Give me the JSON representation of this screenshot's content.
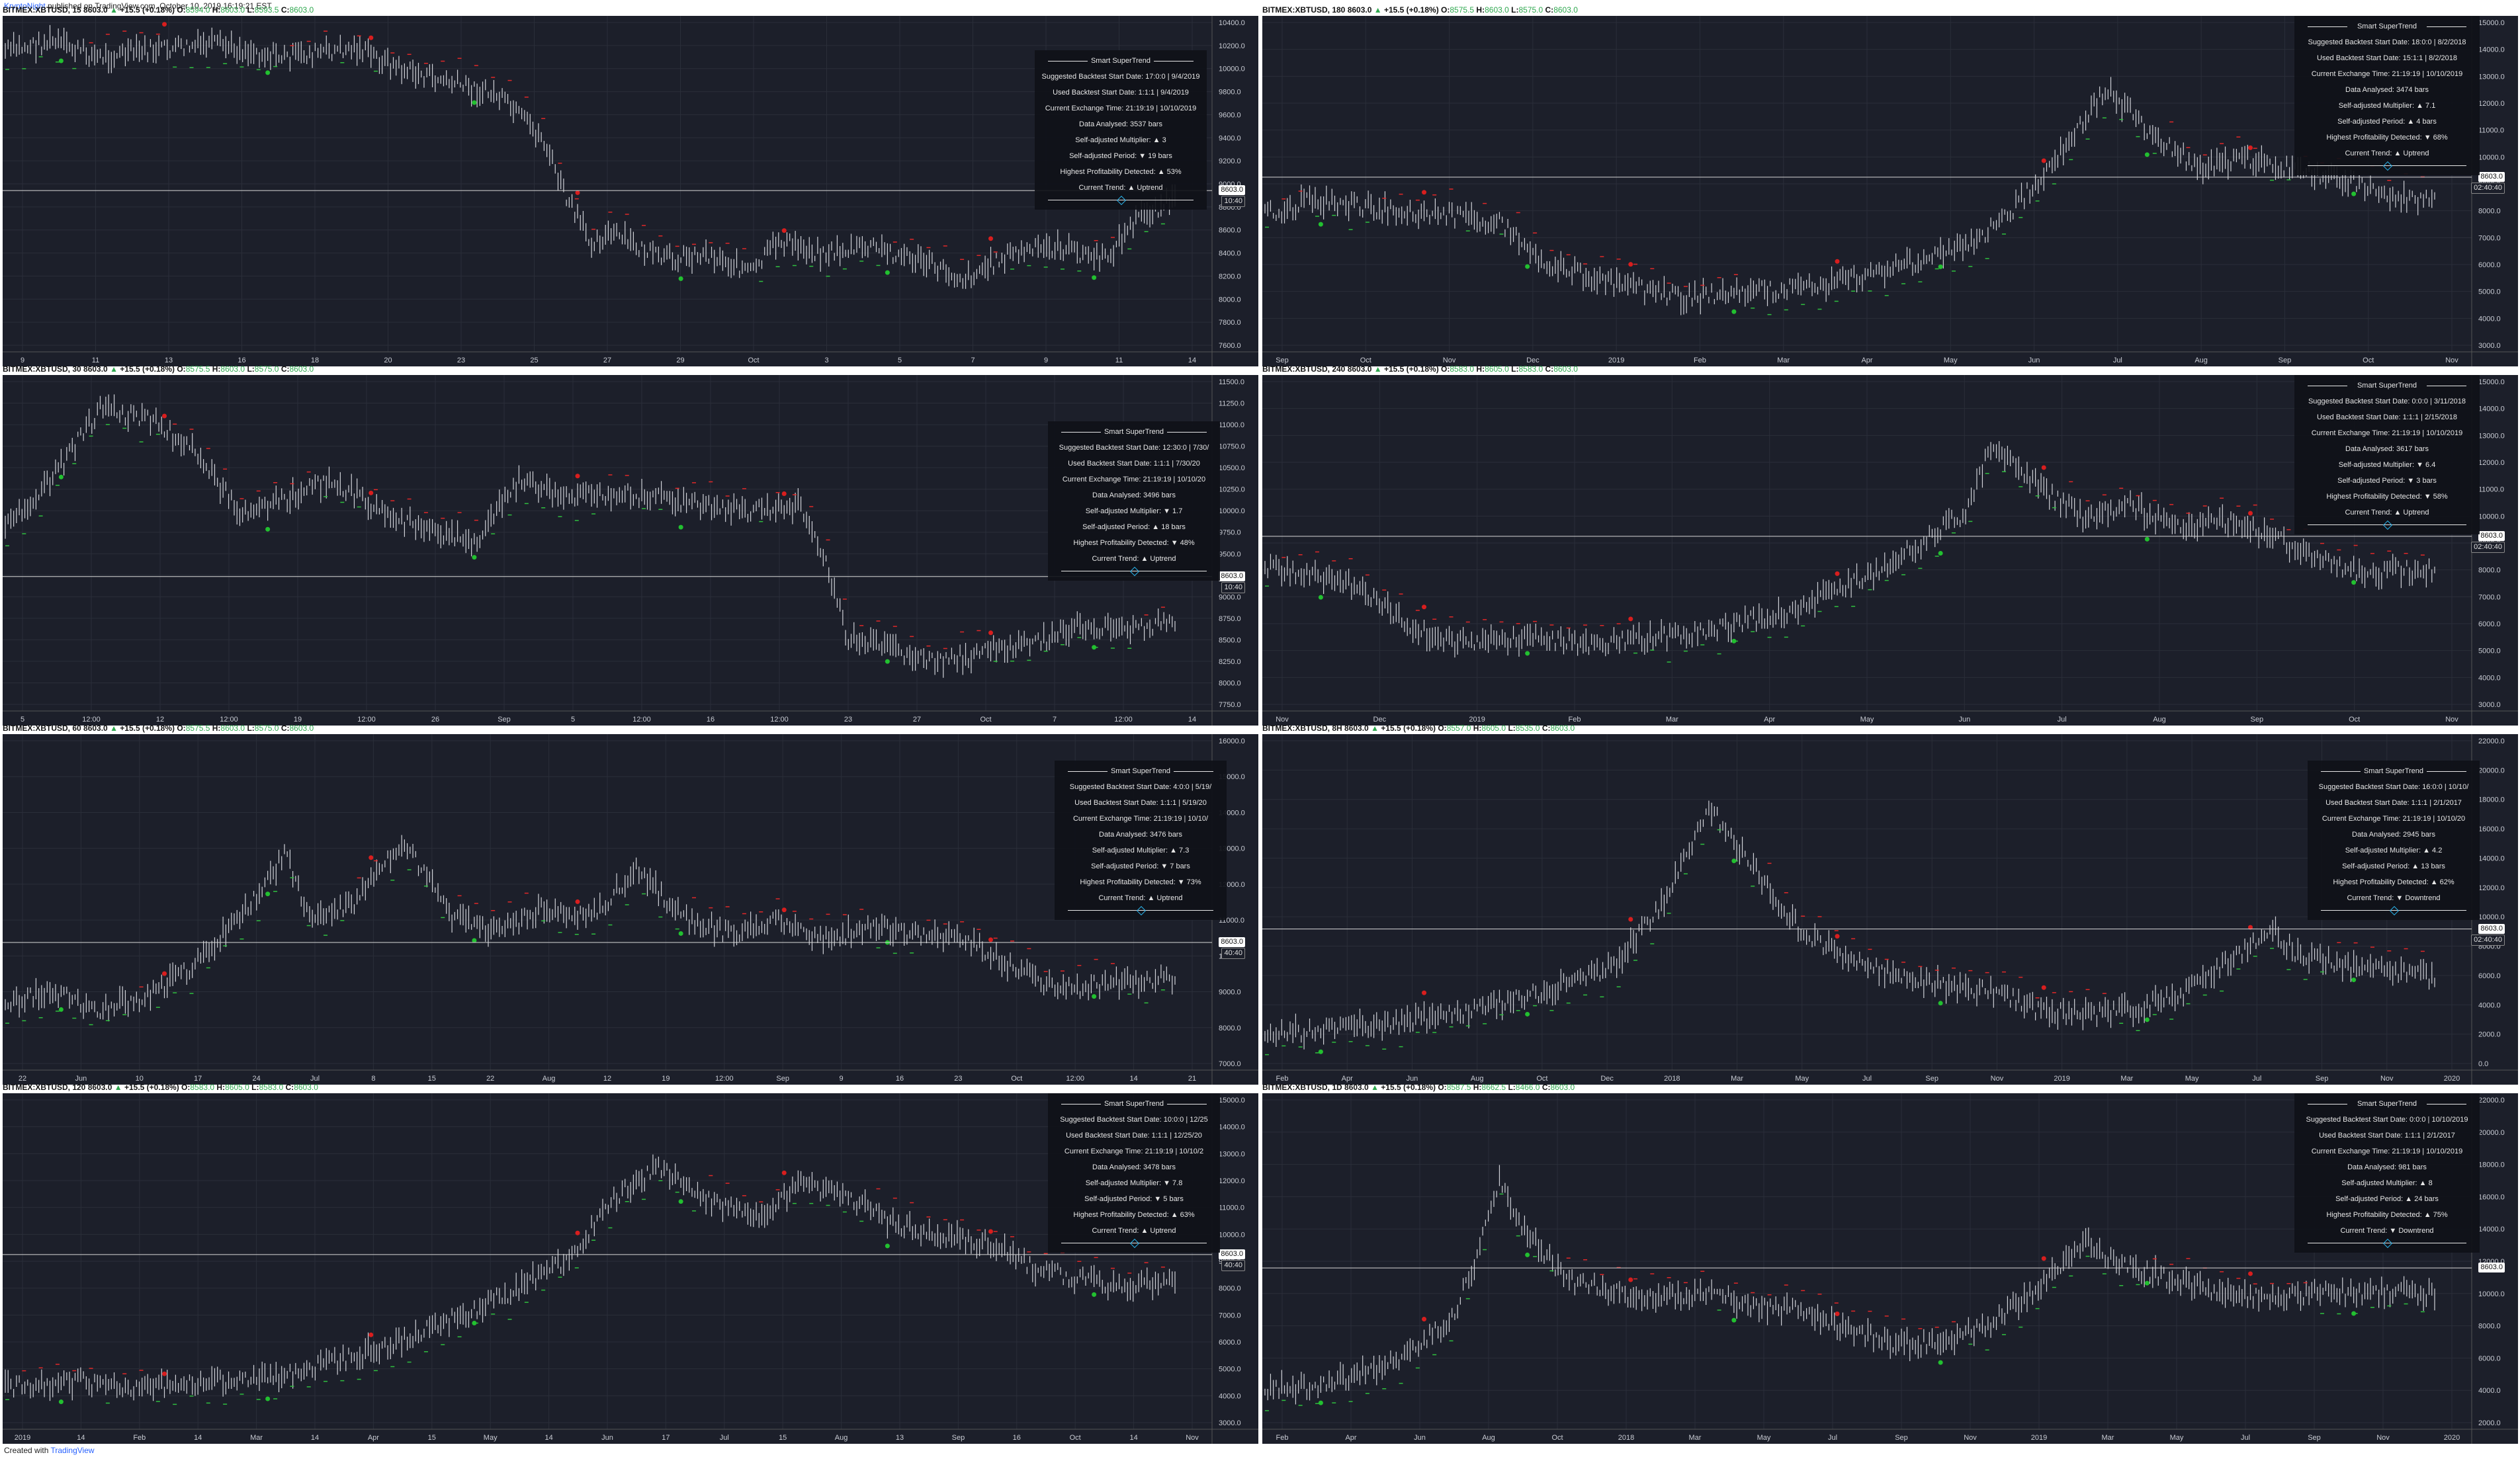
{
  "header": {
    "author": "KryptoNight",
    "published": "published on TradingView.com, October 10, 2019 16:19:21 EST"
  },
  "footer": {
    "created_with": "Created with",
    "brand": "TradingView"
  },
  "colors": {
    "panel_bg": "#1c1f2a",
    "candle": "#d0d2d8",
    "supertrend_up": "#2fbf3f",
    "supertrend_down": "#e02828",
    "buy": "#22c030",
    "sell": "#d81e1e",
    "grid": "#2a2e39"
  },
  "panels": [
    {
      "id": "p15",
      "title": {
        "symbol": "BITMEX:XBTUSD, 15",
        "last": "8603.0",
        "change": "+15.5 (+0.18%)",
        "o": "8594.0",
        "h": "8603.0",
        "l": "8593.5",
        "c": "8603.0"
      },
      "info": {
        "title": "Smart SuperTrend",
        "rows": [
          "Suggested Backtest Start Date: 17:0:0 | 9/4/2019",
          "Used Backtest Start Date: 1:1:1 | 9/4/2019",
          "Current Exchange Time: 21:19:19 | 10/10/2019",
          "Data Analysed: 3537 bars",
          "Self-adjusted Multiplier: ▲ 3",
          "Self-adjusted Period: ▼ 19 bars",
          "Highest Profitability Detected: ▲ 53%",
          "Current Trend: ▲ Uptrend"
        ]
      },
      "price_tag": "8603.0",
      "time_tag": "10:40",
      "yticks": [
        "10400.0",
        "10200.0",
        "10000.0",
        "9800.0",
        "9600.0",
        "9400.0",
        "9200.0",
        "9000.0",
        "8800.0",
        "8600.0",
        "8400.0",
        "8200.0",
        "8000.0",
        "7800.0",
        "7600.0"
      ],
      "xticks": [
        "9",
        "11",
        "13",
        "16",
        "18",
        "20",
        "23",
        "25",
        "27",
        "29",
        "Oct",
        "3",
        "5",
        "7",
        "9",
        "11",
        "14"
      ]
    },
    {
      "id": "p180",
      "title": {
        "symbol": "BITMEX:XBTUSD, 180",
        "last": "8603.0",
        "change": "+15.5 (+0.18%)",
        "o": "8575.5",
        "h": "8603.0",
        "l": "8575.0",
        "c": "8603.0"
      },
      "info": {
        "title": "Smart SuperTrend",
        "rows": [
          "Suggested Backtest Start Date: 18:0:0 | 8/2/2018",
          "Used Backtest Start Date: 15:1:1 | 8/2/2018",
          "Current Exchange Time: 21:19:19 | 10/10/2019",
          "Data Analysed: 3474 bars",
          "Self-adjusted Multiplier: ▲ 7.1",
          "Self-adjusted Period: ▲ 4 bars",
          "Highest Profitability Detected: ▼ 68%",
          "Current Trend: ▲ Uptrend"
        ]
      },
      "price_tag": "8603.0",
      "time_tag": "02:40:40",
      "yticks": [
        "15000.0",
        "14000.0",
        "13000.0",
        "12000.0",
        "11000.0",
        "10000.0",
        "9000.0",
        "8000.0",
        "7000.0",
        "6000.0",
        "5000.0",
        "4000.0",
        "3000.0"
      ],
      "xticks": [
        "Sep",
        "Oct",
        "Nov",
        "Dec",
        "2019",
        "Feb",
        "Mar",
        "Apr",
        "May",
        "Jun",
        "Jul",
        "Aug",
        "Sep",
        "Oct",
        "Nov"
      ]
    },
    {
      "id": "p30",
      "title": {
        "symbol": "BITMEX:XBTUSD, 30",
        "last": "8603.0",
        "change": "+15.5 (+0.18%)",
        "o": "8575.5",
        "h": "8603.0",
        "l": "8575.0",
        "c": "8603.0"
      },
      "info": {
        "title": "Smart SuperTrend",
        "rows": [
          "Suggested Backtest Start Date: 12:30:0 | 7/30/",
          "Used Backtest Start Date: 1:1:1 | 7/30/20",
          "Current Exchange Time: 21:19:19 | 10/10/20",
          "Data Analysed: 3496 bars",
          "Self-adjusted Multiplier: ▼ 1.7",
          "Self-adjusted Period: ▲ 18 bars",
          "Highest Profitability Detected: ▼ 48%",
          "Current Trend: ▲ Uptrend"
        ]
      },
      "price_tag": "8603.0",
      "time_tag": "10:40",
      "yticks": [
        "11500.0",
        "11250.0",
        "11000.0",
        "10750.0",
        "10500.0",
        "10250.0",
        "10000.0",
        "9750.0",
        "9500.0",
        "9250.0",
        "9000.0",
        "8750.0",
        "8500.0",
        "8250.0",
        "8000.0",
        "7750.0"
      ],
      "xticks": [
        "5",
        "12:00",
        "12",
        "12:00",
        "19",
        "12:00",
        "26",
        "Sep",
        "5",
        "12:00",
        "16",
        "12:00",
        "23",
        "27",
        "Oct",
        "7",
        "12:00",
        "14"
      ]
    },
    {
      "id": "p240",
      "title": {
        "symbol": "BITMEX:XBTUSD, 240",
        "last": "8603.0",
        "change": "+15.5 (+0.18%)",
        "o": "8583.0",
        "h": "8605.0",
        "l": "8583.0",
        "c": "8603.0"
      },
      "info": {
        "title": "Smart SuperTrend",
        "rows": [
          "Suggested Backtest Start Date: 0:0:0 | 3/11/2018",
          "Used Backtest Start Date: 1:1:1 | 2/15/2018",
          "Current Exchange Time: 21:19:19 | 10/10/2019",
          "Data Analysed: 3617 bars",
          "Self-adjusted Multiplier: ▼ 6.4",
          "Self-adjusted Period: ▼ 3 bars",
          "Highest Profitability Detected: ▼ 58%",
          "Current Trend: ▲ Uptrend"
        ]
      },
      "price_tag": "8603.0",
      "time_tag": "02:40:40",
      "yticks": [
        "15000.0",
        "14000.0",
        "13000.0",
        "12000.0",
        "11000.0",
        "10000.0",
        "9000.0",
        "8000.0",
        "7000.0",
        "6000.0",
        "5000.0",
        "4000.0",
        "3000.0"
      ],
      "xticks": [
        "Nov",
        "Dec",
        "2019",
        "Feb",
        "Mar",
        "Apr",
        "May",
        "Jun",
        "Jul",
        "Aug",
        "Sep",
        "Oct",
        "Nov"
      ]
    },
    {
      "id": "p60",
      "title": {
        "symbol": "BITMEX:XBTUSD, 60",
        "last": "8603.0",
        "change": "+15.5 (+0.18%)",
        "o": "8575.5",
        "h": "8603.0",
        "l": "8575.0",
        "c": "8603.0"
      },
      "info": {
        "title": "Smart SuperTrend",
        "rows": [
          "Suggested Backtest Start Date: 4:0:0 | 5/19/",
          "Used Backtest Start Date: 1:1:1 | 5/19/20",
          "Current Exchange Time: 21:19:19 | 10/10/",
          "Data Analysed: 3476 bars",
          "Self-adjusted Multiplier: ▲ 7.3",
          "Self-adjusted Period: ▼ 7 bars",
          "Highest Profitability Detected: ▼ 73%",
          "Current Trend: ▲ Uptrend"
        ]
      },
      "price_tag": "8603.0",
      "time_tag": "40:40",
      "yticks": [
        "16000.0",
        "15000.0",
        "14000.0",
        "13000.0",
        "12000.0",
        "11000.0",
        "10000.0",
        "9000.0",
        "8000.0",
        "7000.0"
      ],
      "xticks": [
        "22",
        "Jun",
        "10",
        "17",
        "24",
        "Jul",
        "8",
        "15",
        "22",
        "Aug",
        "12",
        "19",
        "12:00",
        "Sep",
        "9",
        "16",
        "23",
        "Oct",
        "12:00",
        "14",
        "21"
      ]
    },
    {
      "id": "p8h",
      "title": {
        "symbol": "BITMEX:XBTUSD, 8H",
        "last": "8603.0",
        "change": "+15.5 (+0.18%)",
        "o": "8557.0",
        "h": "8605.0",
        "l": "8535.0",
        "c": "8603.0"
      },
      "info": {
        "title": "Smart SuperTrend",
        "rows": [
          "Suggested Backtest Start Date: 16:0:0 | 10/10/",
          "Used Backtest Start Date: 1:1:1 | 2/1/2017",
          "Current Exchange Time: 21:19:19 | 10/10/20",
          "Data Analysed: 2945 bars",
          "Self-adjusted Multiplier: ▲ 4.2",
          "Self-adjusted Period: ▲ 13 bars",
          "Highest Profitability Detected: ▲ 62%",
          "Current Trend: ▼ Downtrend"
        ]
      },
      "price_tag": "8603.0",
      "time_tag": "02:40:40",
      "yticks": [
        "22000.0",
        "20000.0",
        "18000.0",
        "16000.0",
        "14000.0",
        "12000.0",
        "10000.0",
        "8000.0",
        "6000.0",
        "4000.0",
        "2000.0",
        "0.0"
      ],
      "xticks": [
        "Feb",
        "Apr",
        "Jun",
        "Aug",
        "Oct",
        "Dec",
        "2018",
        "Mar",
        "May",
        "Jul",
        "Sep",
        "Nov",
        "2019",
        "Mar",
        "May",
        "Jul",
        "Sep",
        "Nov",
        "2020"
      ]
    },
    {
      "id": "p120",
      "title": {
        "symbol": "BITMEX:XBTUSD, 120",
        "last": "8603.0",
        "change": "+15.5 (+0.18%)",
        "o": "8583.0",
        "h": "8605.0",
        "l": "8583.0",
        "c": "8603.0"
      },
      "info": {
        "title": "Smart SuperTrend",
        "rows": [
          "Suggested Backtest Start Date: 10:0:0 | 12/25",
          "Used Backtest Start Date: 1:1:1 | 12/25/20",
          "Current Exchange Time: 21:19:19 | 10/10/2",
          "Data Analysed: 3478 bars",
          "Self-adjusted Multiplier: ▼ 7.8",
          "Self-adjusted Period: ▼ 5 bars",
          "Highest Profitability Detected: ▲ 63%",
          "Current Trend: ▲ Uptrend"
        ]
      },
      "price_tag": "8603.0",
      "time_tag": "40:40",
      "yticks": [
        "15000.0",
        "14000.0",
        "13000.0",
        "12000.0",
        "11000.0",
        "10000.0",
        "9000.0",
        "8000.0",
        "7000.0",
        "6000.0",
        "5000.0",
        "4000.0",
        "3000.0"
      ],
      "xticks": [
        "2019",
        "14",
        "Feb",
        "14",
        "Mar",
        "14",
        "Apr",
        "15",
        "May",
        "14",
        "Jun",
        "17",
        "Jul",
        "15",
        "Aug",
        "13",
        "Sep",
        "16",
        "Oct",
        "14",
        "Nov"
      ]
    },
    {
      "id": "p1d",
      "title": {
        "symbol": "BITMEX:XBTUSD, 1D",
        "last": "8603.0",
        "change": "+15.5 (+0.18%)",
        "o": "8587.5",
        "h": "8662.5",
        "l": "8466.0",
        "c": "8603.0"
      },
      "info": {
        "title": "Smart SuperTrend",
        "rows": [
          "Suggested Backtest Start Date: 0:0:0 | 10/10/2019",
          "Used Backtest Start Date: 1:1:1 | 2/1/2017",
          "Current Exchange Time: 21:19:19 | 10/10/2019",
          "Data Analysed: 981 bars",
          "Self-adjusted Multiplier: ▲ 8",
          "Self-adjusted Period: ▲ 24 bars",
          "Highest Profitability Detected: ▲ 75%",
          "Current Trend: ▼ Downtrend"
        ]
      },
      "price_tag": "8603.0",
      "time_tag": "",
      "yticks": [
        "22000.0",
        "20000.0",
        "18000.0",
        "16000.0",
        "14000.0",
        "12000.0",
        "10000.0",
        "8000.0",
        "6000.0",
        "4000.0",
        "2000.0"
      ],
      "xticks": [
        "Feb",
        "Apr",
        "Jun",
        "Aug",
        "Oct",
        "2018",
        "Mar",
        "May",
        "Jul",
        "Sep",
        "Nov",
        "2019",
        "Mar",
        "May",
        "Jul",
        "Sep",
        "Nov",
        "2020"
      ]
    }
  ],
  "chart_data": [
    {
      "type": "candlestick",
      "title": "BITMEX:XBTUSD, 15",
      "ylim": [
        7500,
        10500
      ],
      "trend": "up"
    },
    {
      "type": "candlestick",
      "title": "BITMEX:XBTUSD, 180",
      "ylim": [
        2500,
        15500
      ],
      "trend": "up"
    },
    {
      "type": "candlestick",
      "title": "BITMEX:XBTUSD, 30",
      "ylim": [
        7650,
        11600
      ],
      "trend": "up"
    },
    {
      "type": "candlestick",
      "title": "BITMEX:XBTUSD, 240",
      "ylim": [
        2500,
        15500
      ],
      "trend": "up"
    },
    {
      "type": "candlestick",
      "title": "BITMEX:XBTUSD, 60",
      "ylim": [
        6500,
        16500
      ],
      "trend": "up"
    },
    {
      "type": "candlestick",
      "title": "BITMEX:XBTUSD, 8H",
      "ylim": [
        -1000,
        23000
      ],
      "trend": "down"
    },
    {
      "type": "candlestick",
      "title": "BITMEX:XBTUSD, 120",
      "ylim": [
        2500,
        15500
      ],
      "trend": "up"
    },
    {
      "type": "candlestick",
      "title": "BITMEX:XBTUSD, 1D",
      "ylim": [
        1000,
        23000
      ],
      "trend": "down"
    }
  ]
}
